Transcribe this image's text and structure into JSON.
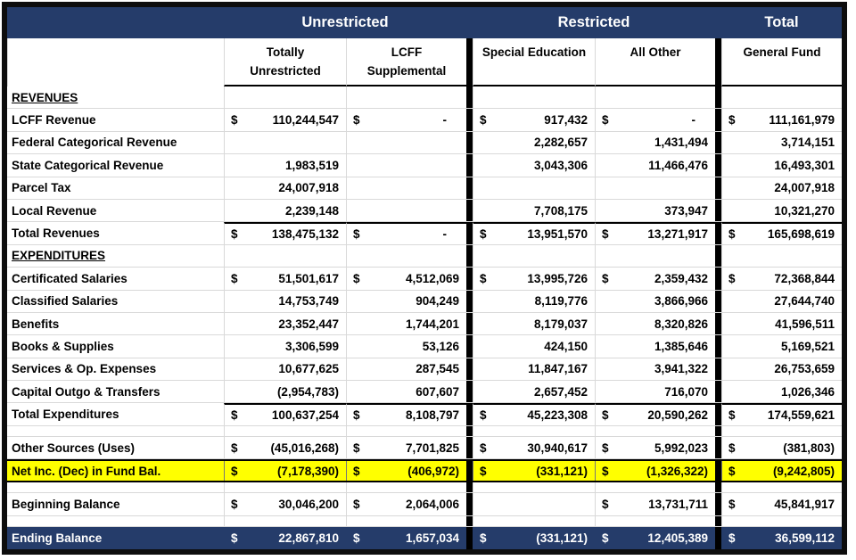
{
  "colors": {
    "header_bg": "#253c6a",
    "header_text": "#ffffff",
    "highlight_bg": "#ffff00",
    "grid_line": "#d9d9d9",
    "outer_border": "#0d0d0d"
  },
  "table": {
    "column_groups": [
      {
        "label": "Unrestricted",
        "columns": 2
      },
      {
        "label": "Restricted",
        "columns": 2
      },
      {
        "label": "Total",
        "columns": 1
      }
    ],
    "columns": [
      {
        "key": "totally-unrestricted",
        "label": "Totally\nUnrestricted"
      },
      {
        "key": "lcff-supplemental",
        "label": "LCFF\nSupplemental"
      },
      {
        "key": "special-education",
        "label": "Special Education"
      },
      {
        "key": "all-other",
        "label": "All Other"
      },
      {
        "key": "general-fund",
        "label": "General Fund"
      }
    ],
    "rows": [
      {
        "type": "section",
        "label": "REVENUES",
        "cells": [
          "",
          "",
          "",
          "",
          ""
        ]
      },
      {
        "type": "data",
        "label": "LCFF Revenue",
        "cells": [
          "$110,244,547",
          "$-",
          "$917,432",
          "$-",
          "$111,161,979"
        ]
      },
      {
        "type": "data",
        "label": "Federal Categorical Revenue",
        "cells": [
          "",
          "",
          "2,282,657",
          "1,431,494",
          "3,714,151"
        ]
      },
      {
        "type": "data",
        "label": "State Categorical Revenue",
        "cells": [
          "1,983,519",
          "",
          "3,043,306",
          "11,466,476",
          "16,493,301"
        ]
      },
      {
        "type": "data",
        "label": "Parcel Tax",
        "cells": [
          "24,007,918",
          "",
          "",
          "",
          "24,007,918"
        ]
      },
      {
        "type": "data",
        "label": "Local Revenue",
        "cells": [
          "2,239,148",
          "",
          "7,708,175",
          "373,947",
          "10,321,270"
        ]
      },
      {
        "type": "total",
        "label": "Total Revenues",
        "cells": [
          "$138,475,132",
          "$-",
          "$13,951,570",
          "$13,271,917",
          "$165,698,619"
        ]
      },
      {
        "type": "section",
        "label": "EXPENDITURES",
        "cells": [
          "",
          "",
          "",
          "",
          ""
        ]
      },
      {
        "type": "data",
        "label": "Certificated Salaries",
        "cells": [
          "$51,501,617",
          "$4,512,069",
          "$13,995,726",
          "$2,359,432",
          "$72,368,844"
        ]
      },
      {
        "type": "data",
        "label": "Classified Salaries",
        "cells": [
          "14,753,749",
          "904,249",
          "8,119,776",
          "3,866,966",
          "27,644,740"
        ]
      },
      {
        "type": "data",
        "label": "Benefits",
        "cells": [
          "23,352,447",
          "1,744,201",
          "8,179,037",
          "8,320,826",
          "41,596,511"
        ]
      },
      {
        "type": "data",
        "label": "Books & Supplies",
        "cells": [
          "3,306,599",
          "53,126",
          "424,150",
          "1,385,646",
          "5,169,521"
        ]
      },
      {
        "type": "data",
        "label": "Services & Op. Expenses",
        "cells": [
          "10,677,625",
          "287,545",
          "11,847,167",
          "3,941,322",
          "26,753,659"
        ]
      },
      {
        "type": "data",
        "label": "Capital Outgo & Transfers",
        "cells": [
          "(2,954,783)",
          "607,607",
          "2,657,452",
          "716,070",
          "1,026,346"
        ]
      },
      {
        "type": "total",
        "label": "Total Expenditures",
        "cells": [
          "$100,637,254",
          "$8,108,797",
          "$45,223,308",
          "$20,590,262",
          "$174,559,621"
        ]
      },
      {
        "type": "spacer",
        "label": "",
        "cells": [
          "",
          "",
          "",
          "",
          ""
        ]
      },
      {
        "type": "data",
        "label": "Other Sources (Uses)",
        "cells": [
          "$(45,016,268)",
          "$7,701,825",
          "$30,940,617",
          "$5,992,023",
          "$(381,803)"
        ]
      },
      {
        "type": "highlight",
        "label": "Net Inc. (Dec) in Fund Bal.",
        "cells": [
          "$(7,178,390)",
          "$(406,972)",
          "$(331,121)",
          "$(1,326,322)",
          "$(9,242,805)"
        ]
      },
      {
        "type": "spacer",
        "label": "",
        "cells": [
          "",
          "",
          "",
          "",
          ""
        ]
      },
      {
        "type": "data",
        "label": "Beginning Balance",
        "cells": [
          "$30,046,200",
          "$2,064,006",
          "",
          "$13,731,711",
          "$45,841,917"
        ]
      },
      {
        "type": "spacer",
        "label": "",
        "cells": [
          "",
          "",
          "",
          "",
          ""
        ]
      },
      {
        "type": "footer",
        "label": "Ending Balance",
        "cells": [
          "$22,867,810",
          "$1,657,034",
          "$(331,121)",
          "$12,405,389",
          "$36,599,112"
        ]
      }
    ]
  }
}
